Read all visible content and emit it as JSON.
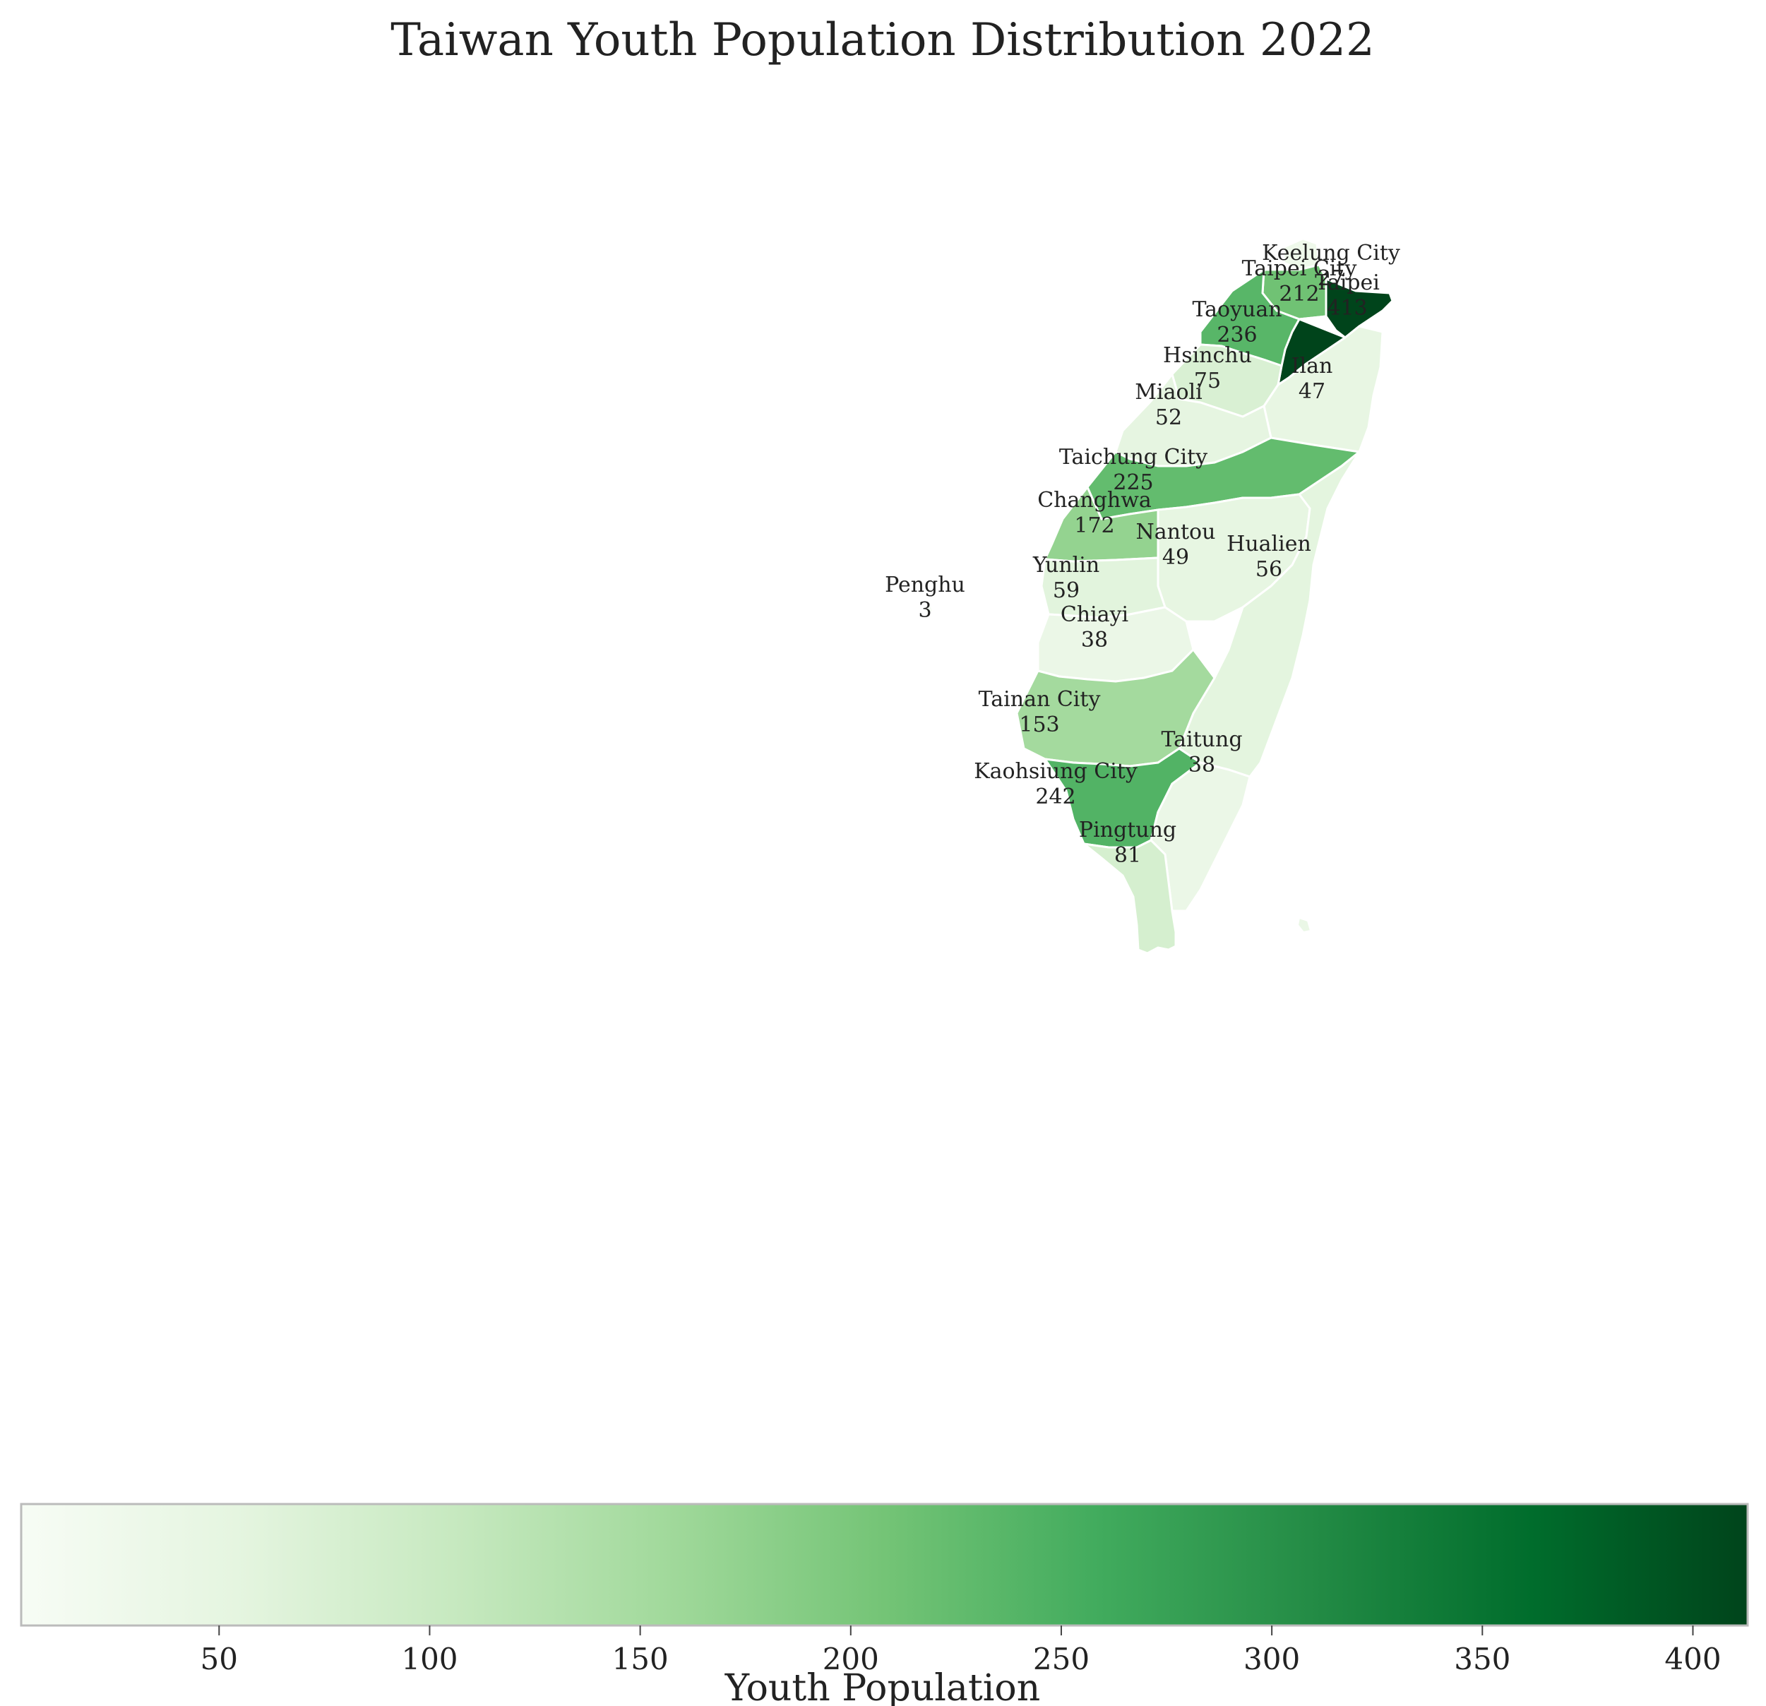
{
  "title": "Taiwan Youth Population Distribution 2022",
  "colorbar": {
    "label": "Youth Population",
    "ticks": [
      50,
      100,
      150,
      200,
      250,
      300,
      350,
      400
    ],
    "min": 3,
    "max": 413,
    "colormap": "Greens"
  },
  "chart_data": {
    "type": "choropleth",
    "title": "Taiwan Youth Population Distribution 2022",
    "value_label": "Youth Population",
    "regions": [
      {
        "name": "Keelung City",
        "value": 27
      },
      {
        "name": "Taipei City",
        "value": 212
      },
      {
        "name": "Taipei",
        "value": 413
      },
      {
        "name": "Taoyuan",
        "value": 236
      },
      {
        "name": "Hsinchu",
        "value": 75
      },
      {
        "name": "Ilan",
        "value": 47
      },
      {
        "name": "Miaoli",
        "value": 52
      },
      {
        "name": "Taichung City",
        "value": 225
      },
      {
        "name": "Changhwa",
        "value": 172
      },
      {
        "name": "Nantou",
        "value": 49
      },
      {
        "name": "Hualien",
        "value": 56
      },
      {
        "name": "Yunlin",
        "value": 59
      },
      {
        "name": "Penghu",
        "value": 3
      },
      {
        "name": "Chiayi",
        "value": 38
      },
      {
        "name": "Tainan City",
        "value": 153
      },
      {
        "name": "Taitung",
        "value": 38
      },
      {
        "name": "Kaohsiung City",
        "value": 242
      },
      {
        "name": "Pingtung",
        "value": 81
      }
    ]
  }
}
